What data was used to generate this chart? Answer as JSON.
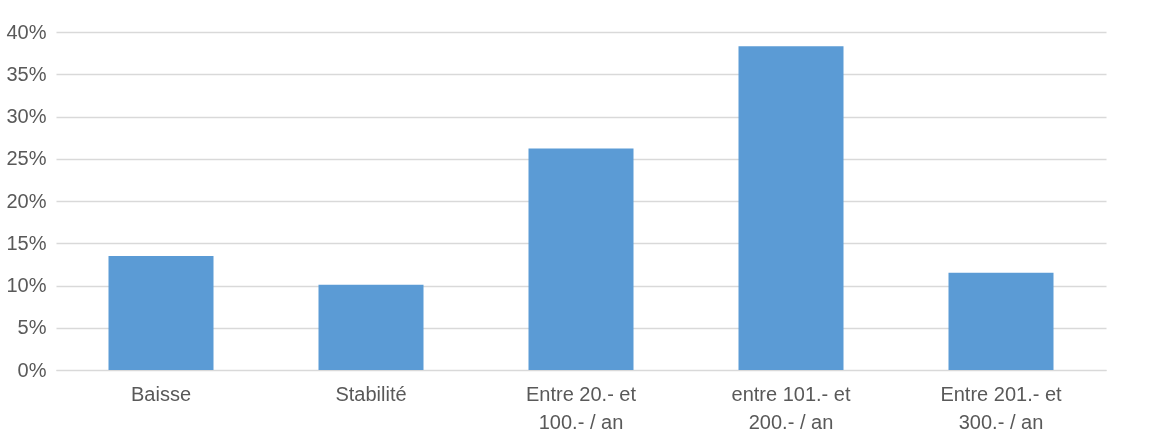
{
  "chart_data": {
    "type": "bar",
    "categories": [
      "Baisse",
      "Stabilité",
      "Entre 20.- et 100.- / an",
      "entre 101.- et 200.- / an",
      "Entre 201.- et 300.- / an"
    ],
    "values": [
      13.5,
      10.1,
      26.2,
      38.3,
      11.5
    ],
    "color": "#5b9bd5",
    "ylim": [
      0,
      40
    ],
    "yticks": [
      {
        "value": 0,
        "label": "0%"
      },
      {
        "value": 5,
        "label": "5%"
      },
      {
        "value": 10,
        "label": "10%"
      },
      {
        "value": 15,
        "label": "15%"
      },
      {
        "value": 20,
        "label": "20%"
      },
      {
        "value": 25,
        "label": "25%"
      },
      {
        "value": 30,
        "label": "30%"
      },
      {
        "value": 35,
        "label": "35%"
      },
      {
        "value": 40,
        "label": "40%"
      }
    ],
    "grid": "y"
  }
}
